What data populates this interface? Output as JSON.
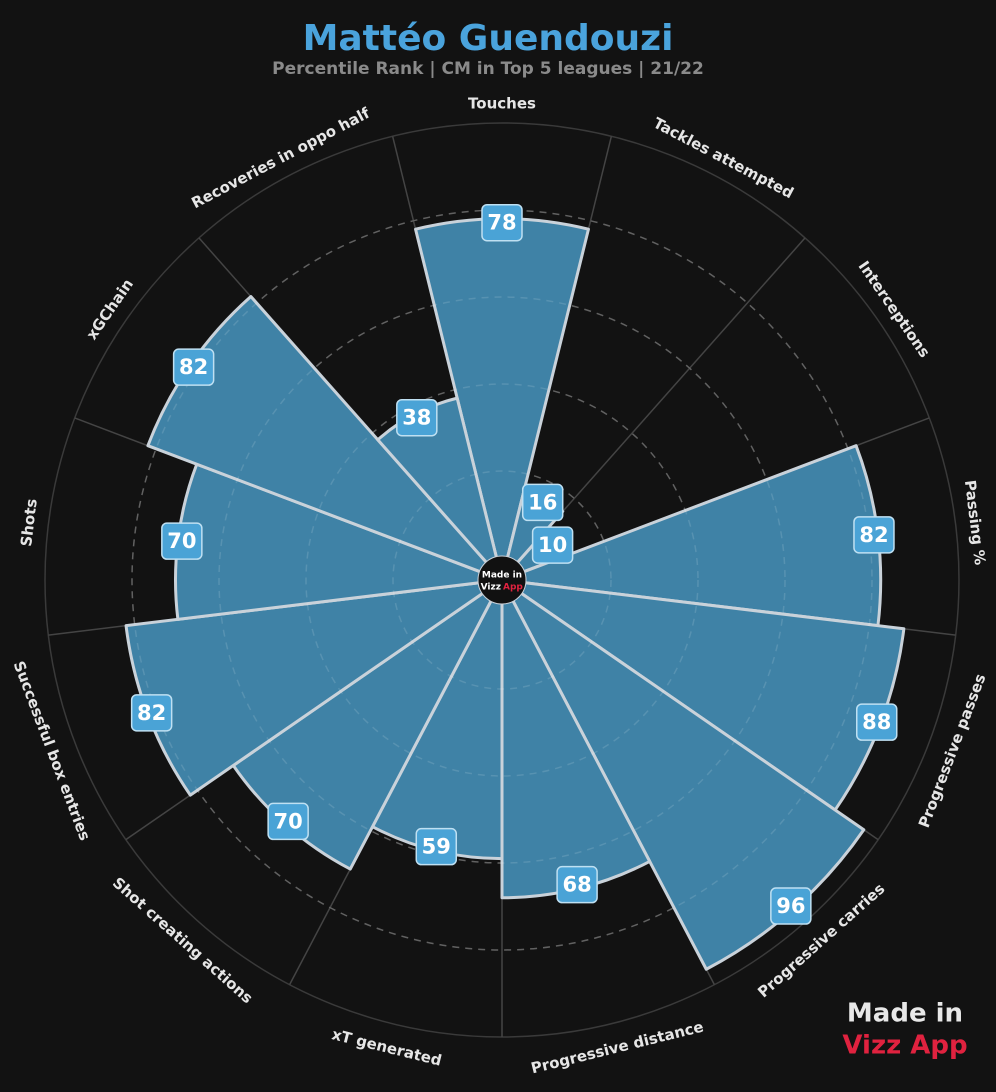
{
  "chart_data": {
    "type": "polar_bar",
    "title": "Mattéo Guendouzi",
    "subtitle": "Percentile Rank | CM in Top 5 leagues | 21/22",
    "categories": [
      "Touches",
      "Tackles attempted",
      "Interceptions",
      "Passing %",
      "Progressive passes",
      "Progressive carries",
      "Progressive distance",
      "xT generated",
      "Shot creating actions",
      "Successful box entries",
      "Shots",
      "xGChain",
      "Recoveries in oppo half"
    ],
    "values": [
      78,
      16,
      10,
      82,
      88,
      96,
      68,
      59,
      70,
      82,
      70,
      82,
      38
    ],
    "color": "#3f82a6",
    "rlim": [
      0,
      100
    ],
    "rticks": [
      20,
      40,
      60,
      80
    ],
    "grid": true,
    "logo": {
      "line1": "Made in",
      "word1": "Vizz",
      "word2": "App"
    },
    "watermark": [
      "Made in",
      "Vizz App"
    ]
  }
}
